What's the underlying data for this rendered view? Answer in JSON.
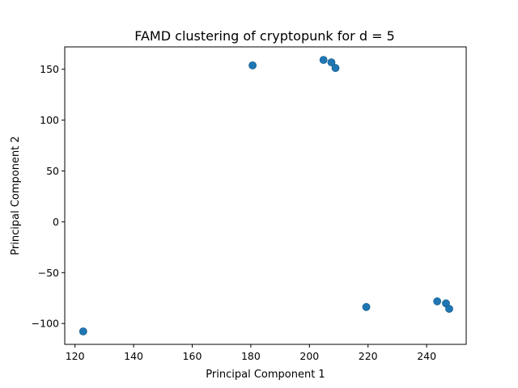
{
  "chart_data": {
    "type": "scatter",
    "title": "FAMD clustering of cryptopunk for d = 5",
    "xlabel": "Principal Component 1",
    "ylabel": "Principal Component 2",
    "xlim": [
      116.5,
      253.5
    ],
    "ylim": [
      -120.5,
      172
    ],
    "xticks": [
      120,
      140,
      160,
      180,
      200,
      220,
      240
    ],
    "yticks": [
      -100,
      -50,
      0,
      50,
      100,
      150
    ],
    "grid": false,
    "legend": "none",
    "color": "#1f77b4",
    "points": [
      {
        "x": 122.8,
        "y": -107.8
      },
      {
        "x": 180.6,
        "y": 153.8
      },
      {
        "x": 204.8,
        "y": 159.2
      },
      {
        "x": 207.5,
        "y": 156.8
      },
      {
        "x": 208.9,
        "y": 151.2
      },
      {
        "x": 219.4,
        "y": -83.8
      },
      {
        "x": 243.6,
        "y": -78.2
      },
      {
        "x": 246.6,
        "y": -80.2
      },
      {
        "x": 247.7,
        "y": -85.6
      }
    ]
  }
}
